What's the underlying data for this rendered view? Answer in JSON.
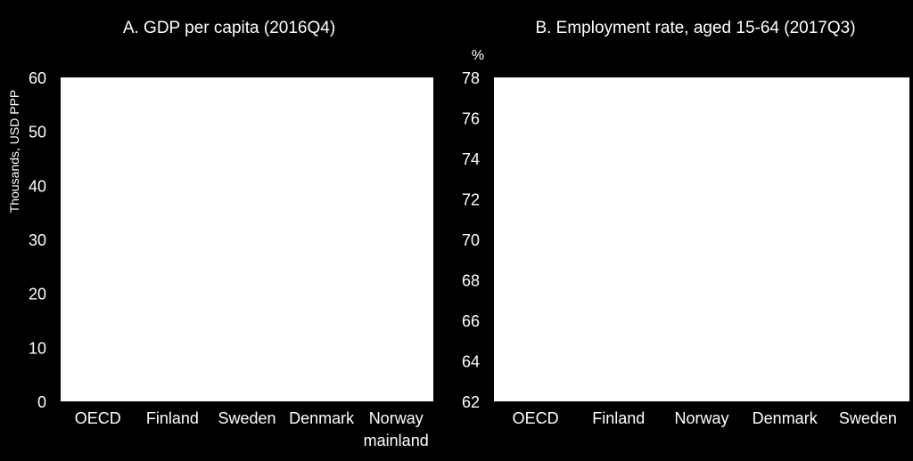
{
  "chart_data": [
    {
      "type": "bar",
      "title": "A. GDP per  capita (2016Q4)",
      "ylabel": "Thousands, USD PPP",
      "xlabel": "",
      "categories": [
        [
          "OECD"
        ],
        [
          "Finland"
        ],
        [
          "Sweden"
        ],
        [
          "Denmark"
        ],
        [
          "Norway",
          "mainland"
        ]
      ],
      "values": [
        null,
        null,
        null,
        null,
        null
      ],
      "ylim": [
        0,
        60
      ],
      "yticks": [
        0,
        10,
        20,
        30,
        40,
        50,
        60
      ],
      "grid": false
    },
    {
      "type": "bar",
      "title": "B. Employment rate, aged 15-64 (2017Q3)",
      "ylabel": "%",
      "xlabel": "",
      "categories": [
        [
          "OECD"
        ],
        [
          "Finland"
        ],
        [
          "Norway"
        ],
        [
          "Denmark"
        ],
        [
          "Sweden"
        ]
      ],
      "values": [
        null,
        null,
        null,
        null,
        null
      ],
      "ylim": [
        62,
        78
      ],
      "yticks": [
        62,
        64,
        66,
        68,
        70,
        72,
        74,
        76,
        78
      ],
      "grid": false
    }
  ]
}
